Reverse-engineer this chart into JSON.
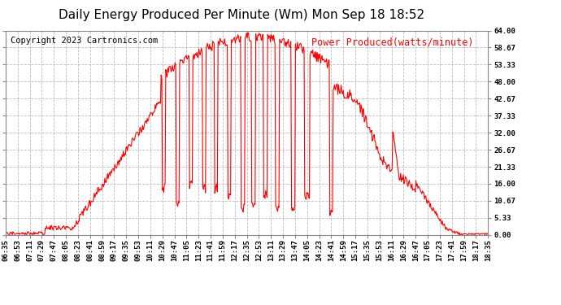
{
  "title": "Daily Energy Produced Per Minute (Wm) Mon Sep 18 18:52",
  "copyright": "Copyright 2023 Cartronics.com",
  "legend_label": "Power Produced(watts/minute)",
  "ylabel_ticks": [
    0.0,
    5.33,
    10.67,
    16.0,
    21.33,
    26.67,
    32.0,
    37.33,
    42.67,
    48.0,
    53.33,
    58.67,
    64.0
  ],
  "ymax": 64.0,
  "ymin": 0.0,
  "line_color": "red",
  "background_color": "#ffffff",
  "grid_color": "#bbbbbb",
  "title_fontsize": 11,
  "copyright_fontsize": 7.5,
  "legend_fontsize": 8.5,
  "tick_fontsize": 6.5,
  "x_tick_labels": [
    "06:35",
    "06:53",
    "07:11",
    "07:29",
    "07:47",
    "08:05",
    "08:23",
    "08:41",
    "08:59",
    "09:17",
    "09:35",
    "09:53",
    "10:11",
    "10:29",
    "10:47",
    "11:05",
    "11:23",
    "11:41",
    "11:59",
    "12:17",
    "12:35",
    "12:53",
    "13:11",
    "13:29",
    "13:47",
    "14:05",
    "14:23",
    "14:41",
    "14:59",
    "15:17",
    "15:35",
    "15:53",
    "16:11",
    "16:29",
    "16:47",
    "17:05",
    "17:23",
    "17:41",
    "17:59",
    "18:17",
    "18:35"
  ],
  "n_points": 730
}
